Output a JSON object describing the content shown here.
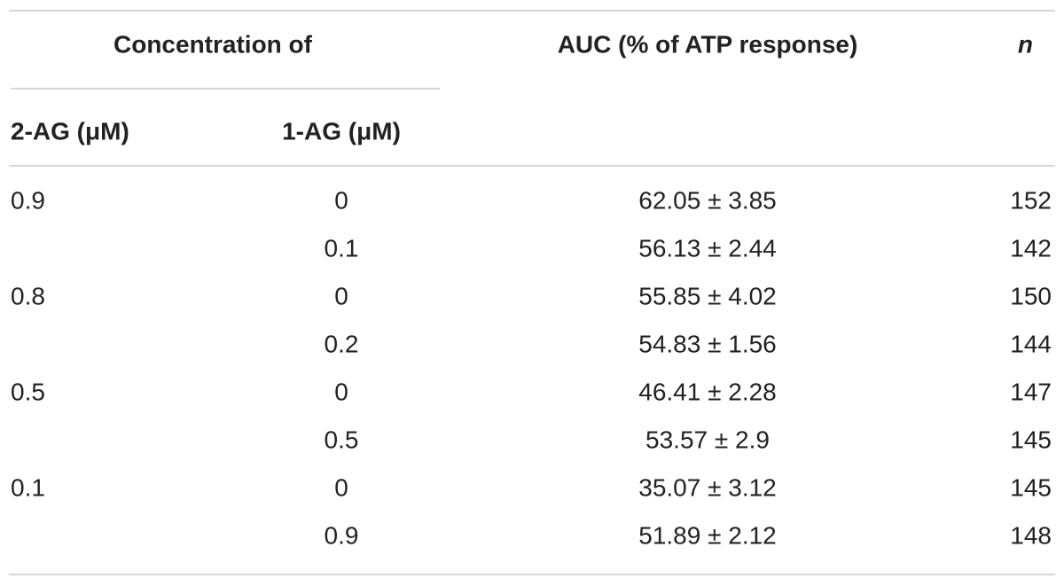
{
  "table": {
    "header": {
      "group": "Concentration of",
      "auc": "AUC (% of ATP response)",
      "n": "n",
      "col1": "2-AG (μM)",
      "col2": "1-AG (μM)"
    },
    "rows": [
      [
        "0.9",
        "0",
        "62.05 ± 3.85",
        "152"
      ],
      [
        null,
        "0.1",
        "56.13 ± 2.44",
        "142"
      ],
      [
        "0.8",
        "0",
        "55.85 ± 4.02",
        "150"
      ],
      [
        null,
        "0.2",
        "54.83 ± 1.56",
        "144"
      ],
      [
        "0.5",
        "0",
        "46.41 ± 2.28",
        "147"
      ],
      [
        null,
        "0.5",
        "53.57 ± 2.9",
        "145"
      ],
      [
        "0.1",
        "0",
        "35.07 ± 3.12",
        "145"
      ],
      [
        null,
        "0.9",
        "51.89 ± 2.12",
        "148"
      ]
    ]
  }
}
